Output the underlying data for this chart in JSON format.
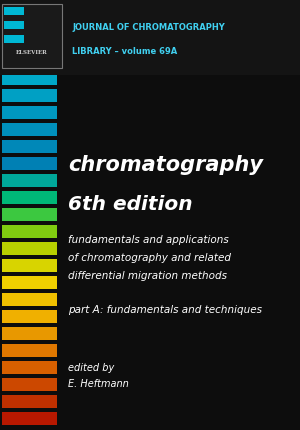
{
  "bg_color": "#0d0d0d",
  "header_bg": "#161616",
  "stripe_colors": [
    "#00b8d4",
    "#00b8d4",
    "#00b8d4",
    "#00b0cc",
    "#00a8c8",
    "#00a0c4",
    "#0098c0",
    "#0090bc",
    "#0088b8",
    "#0080b4",
    "#00a89a",
    "#00b878",
    "#3cc840",
    "#80cc10",
    "#b8d000",
    "#d8d400",
    "#f0d000",
    "#f0c000",
    "#f0b000",
    "#e89800",
    "#e07800",
    "#d86000",
    "#cc4800",
    "#c03000",
    "#b81800"
  ],
  "header_line1": "JOURNAL OF CHROMATOGRAPHY",
  "header_line2": "LIBRARY – volume 69A",
  "title_line1": "chromatography",
  "title_line2": "6th edition",
  "subtitle_line1": "fundamentals and applications",
  "subtitle_line2": "of chromatography and related",
  "subtitle_line3": "differential migration methods",
  "part_line": "part A: fundamentals and techniques",
  "editor_line1": "edited by",
  "editor_line2": "E. Heftmann",
  "text_color": "#ffffff",
  "header_text_color": "#40d0f0"
}
